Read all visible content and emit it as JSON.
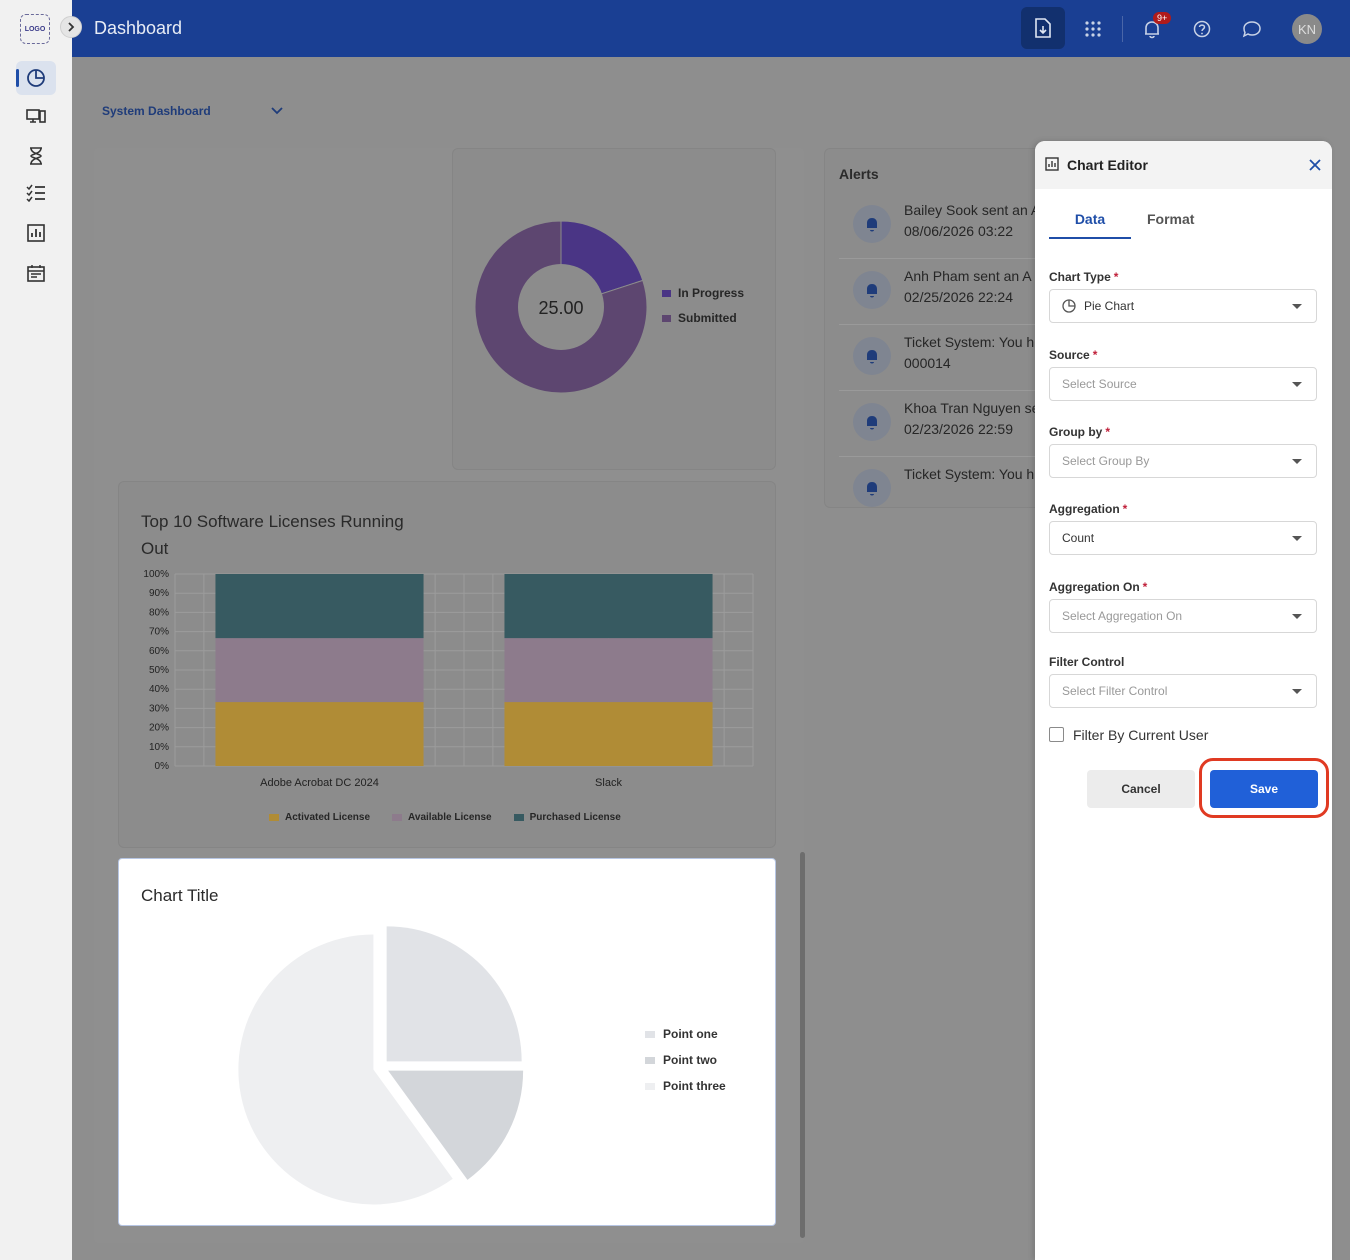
{
  "sidebar": {
    "logo": "LOGO",
    "items": [
      {
        "icon": "pie-chart-icon",
        "active": true
      },
      {
        "icon": "devices-icon",
        "active": false
      },
      {
        "icon": "hourglass-icon",
        "active": false
      },
      {
        "icon": "checklist-icon",
        "active": false
      },
      {
        "icon": "bar-chart-icon",
        "active": false
      },
      {
        "icon": "calendar-icon",
        "active": false
      }
    ]
  },
  "header": {
    "title": "Dashboard",
    "notification_badge": "9+",
    "avatar_initials": "KN"
  },
  "dashboard_select": {
    "value": "System Dashboard"
  },
  "status_donut": {
    "center_value": "25.00",
    "legend": [
      {
        "label": "In Progress",
        "color": "#4a3585"
      },
      {
        "label": "Submitted",
        "color": "#5d4670"
      }
    ],
    "chart_data": {
      "type": "pie",
      "categories": [
        "In Progress",
        "Submitted"
      ],
      "values": [
        20,
        80
      ]
    }
  },
  "licenses_chart": {
    "title_line1": "Top 10 Software Licenses Running",
    "title_line2": "Out",
    "chart_data": {
      "type": "bar",
      "categories": [
        "Adobe Acrobat DC 2024",
        "Slack"
      ],
      "series": [
        {
          "name": "Activated License",
          "color": "#b08c36",
          "values": [
            33.3,
            33.3
          ]
        },
        {
          "name": "Available License",
          "color": "#8d7b8c",
          "values": [
            33.3,
            33.3
          ]
        },
        {
          "name": "Purchased License",
          "color": "#375a61",
          "values": [
            33.4,
            33.4
          ]
        }
      ],
      "yticks": [
        "0%",
        "10%",
        "20%",
        "30%",
        "40%",
        "50%",
        "60%",
        "70%",
        "80%",
        "90%",
        "100%"
      ],
      "ylim": [
        0,
        100
      ]
    }
  },
  "alerts": {
    "title": "Alerts",
    "items": [
      {
        "line1": "Bailey Sook sent an A",
        "line2": "08/06/2026 03:22"
      },
      {
        "line1": "Anh Pham sent an A",
        "line2": "02/25/2026 22:24"
      },
      {
        "line1": "Ticket System: You h",
        "line2": "000014"
      },
      {
        "line1": "Khoa Tran Nguyen se",
        "line2": "02/23/2026 22:59"
      },
      {
        "line1": "Ticket System: You h",
        "line2": ""
      }
    ]
  },
  "placeholder_chart": {
    "title": "Chart Title",
    "legend": [
      {
        "label": "Point one",
        "color": "#e1e3e7"
      },
      {
        "label": "Point two",
        "color": "#d3d6da"
      },
      {
        "label": "Point three",
        "color": "#eeeff1"
      }
    ],
    "chart_data": {
      "type": "pie",
      "categories": [
        "Point one",
        "Point two",
        "Point three"
      ],
      "values": [
        25,
        15,
        60
      ]
    }
  },
  "editor": {
    "title": "Chart Editor",
    "tabs": [
      "Data",
      "Format"
    ],
    "fields": {
      "chart_type": {
        "label": "Chart Type",
        "value": "Pie Chart"
      },
      "source": {
        "label": "Source",
        "placeholder": "Select Source"
      },
      "group_by": {
        "label": "Group by",
        "placeholder": "Select Group By"
      },
      "aggregation": {
        "label": "Aggregation",
        "value": "Count"
      },
      "aggregation_on": {
        "label": "Aggregation On",
        "placeholder": "Select Aggregation On"
      },
      "filter_control": {
        "label": "Filter Control",
        "placeholder": "Select Filter Control"
      }
    },
    "required_mark": "*",
    "filter_by_user": "Filter By Current User",
    "cancel": "Cancel",
    "save": "Save"
  }
}
